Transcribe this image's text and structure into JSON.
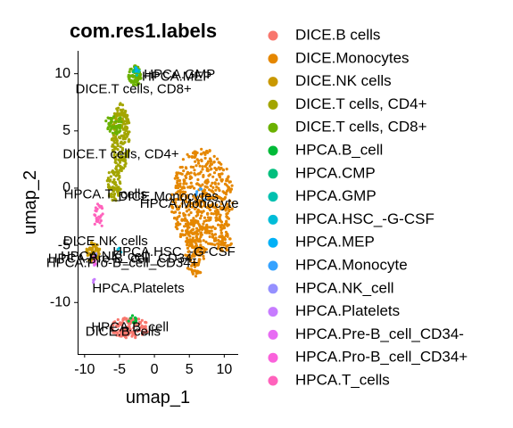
{
  "chart_data": {
    "type": "scatter",
    "title": "com.res1.labels",
    "xlabel": "umap_1",
    "ylabel": "umap_2",
    "xlim": [
      -11,
      12
    ],
    "ylim": [
      -14.5,
      12
    ],
    "x_ticks": [
      -10,
      -5,
      0,
      5,
      10
    ],
    "y_ticks": [
      10,
      5,
      0,
      -5,
      -10
    ],
    "grid": false,
    "legend_position": "right",
    "series": [
      {
        "name": "DICE.B cells",
        "color": "#F8766D",
        "regions": [
          {
            "cx": -3.5,
            "cy": -12.2,
            "rx": 2.8,
            "ry": 0.9,
            "n": 120
          }
        ]
      },
      {
        "name": "DICE.Monocytes",
        "color": "#E58700",
        "regions": [
          {
            "cx": 6.8,
            "cy": -1.0,
            "rx": 4.5,
            "ry": 4.5,
            "n": 520
          },
          {
            "cx": 5.8,
            "cy": -5.2,
            "rx": 1.5,
            "ry": 2.6,
            "n": 140
          },
          {
            "cx": 9.8,
            "cy": -4.7,
            "rx": 1.3,
            "ry": 0.8,
            "n": 50
          }
        ]
      },
      {
        "name": "DICE.NK cells",
        "color": "#C99800",
        "regions": [
          {
            "cx": -8.8,
            "cy": -5.6,
            "rx": 1.0,
            "ry": 0.9,
            "n": 60
          }
        ]
      },
      {
        "name": "DICE.T cells, CD4+",
        "color": "#A3A500",
        "regions": [
          {
            "cx": -4.8,
            "cy": 4.5,
            "rx": 1.3,
            "ry": 3.0,
            "n": 200
          },
          {
            "cx": -5.8,
            "cy": 0.3,
            "rx": 1.0,
            "ry": 1.5,
            "n": 70
          }
        ]
      },
      {
        "name": "DICE.T cells, CD8+",
        "color": "#6BB100",
        "regions": [
          {
            "cx": -2.8,
            "cy": 9.8,
            "rx": 0.9,
            "ry": 0.9,
            "n": 70
          },
          {
            "cx": -5.8,
            "cy": 5.6,
            "rx": 1.2,
            "ry": 1.0,
            "n": 50
          }
        ]
      },
      {
        "name": "HPCA.B_cell",
        "color": "#00BA38",
        "regions": [
          {
            "cx": -3.2,
            "cy": -11.5,
            "rx": 0.6,
            "ry": 0.4,
            "n": 10
          }
        ]
      },
      {
        "name": "HPCA.CMP",
        "color": "#00BF7D",
        "regions": [
          {
            "cx": -2.7,
            "cy": 10.3,
            "rx": 0.4,
            "ry": 0.3,
            "n": 6
          }
        ]
      },
      {
        "name": "HPCA.GMP",
        "color": "#00C0AF",
        "regions": [
          {
            "cx": -2.4,
            "cy": 10.1,
            "rx": 0.4,
            "ry": 0.3,
            "n": 6
          }
        ]
      },
      {
        "name": "HPCA.HSC_-G-CSF",
        "color": "#00BCD8",
        "regions": [
          {
            "cx": -5.0,
            "cy": -5.4,
            "rx": 0.3,
            "ry": 0.3,
            "n": 3
          }
        ]
      },
      {
        "name": "HPCA.MEP",
        "color": "#00B0F6",
        "regions": [
          {
            "cx": -2.5,
            "cy": 10.4,
            "rx": 0.3,
            "ry": 0.3,
            "n": 3
          }
        ]
      },
      {
        "name": "HPCA.Monocyte",
        "color": "#35A2FF",
        "regions": [
          {
            "cx": 6.5,
            "cy": -0.8,
            "rx": 0.8,
            "ry": 0.8,
            "n": 6
          }
        ]
      },
      {
        "name": "HPCA.NK_cell",
        "color": "#9590FF",
        "regions": [
          {
            "cx": -8.6,
            "cy": -5.8,
            "rx": 0.3,
            "ry": 0.3,
            "n": 4
          }
        ]
      },
      {
        "name": "HPCA.Platelets",
        "color": "#C77CFF",
        "regions": [
          {
            "cx": -8.8,
            "cy": -8.0,
            "rx": 0.3,
            "ry": 0.3,
            "n": 3
          }
        ]
      },
      {
        "name": "HPCA.Pre-B_cell_CD34-",
        "color": "#E76BF3",
        "regions": [
          {
            "cx": -8.5,
            "cy": -6.5,
            "rx": 0.3,
            "ry": 0.3,
            "n": 4
          }
        ]
      },
      {
        "name": "HPCA.Pro-B_cell_CD34+",
        "color": "#FA62DB",
        "regions": [
          {
            "cx": -8.6,
            "cy": -6.3,
            "rx": 0.3,
            "ry": 0.3,
            "n": 4
          }
        ]
      },
      {
        "name": "HPCA.T_cells",
        "color": "#FF62BC",
        "regions": [
          {
            "cx": -8.0,
            "cy": -2.5,
            "rx": 0.7,
            "ry": 1.2,
            "n": 25
          }
        ]
      }
    ],
    "annotations": [
      {
        "text": "HPCA.GMP",
        "x": 3.6,
        "y": 9.9
      },
      {
        "text": "HPCA.MEP",
        "x": 3.2,
        "y": 9.7
      },
      {
        "text": "DICE.T cells, CD8+",
        "x": -3.0,
        "y": 8.6
      },
      {
        "text": "DICE.T cells, CD4+",
        "x": -4.8,
        "y": 2.9
      },
      {
        "text": "HPCA.T_cells",
        "x": -7.0,
        "y": -0.6
      },
      {
        "text": "DICE.Monocytes",
        "x": 2.0,
        "y": -0.8
      },
      {
        "text": "HPCA.Monocyte",
        "x": 5.0,
        "y": -1.4
      },
      {
        "text": "DICE.NK cells",
        "x": -7.0,
        "y": -4.7
      },
      {
        "text": "HPCA.HSC_-G-CSF",
        "x": 2.8,
        "y": -5.6
      },
      {
        "text": "HPCA.NK_cell",
        "x": -7.2,
        "y": -6.0
      },
      {
        "text": "HPCA.Pre-B_cell_CD34-",
        "x": -4.6,
        "y": -6.2
      },
      {
        "text": "HPCA.Pro-B_cell_CD34+",
        "x": -4.6,
        "y": -6.6
      },
      {
        "text": "HPCA.Platelets",
        "x": -2.3,
        "y": -8.8
      },
      {
        "text": "HPCA.B_cell",
        "x": -3.5,
        "y": -12.2
      },
      {
        "text": "DICE.B cells",
        "x": -4.5,
        "y": -12.6
      }
    ]
  }
}
